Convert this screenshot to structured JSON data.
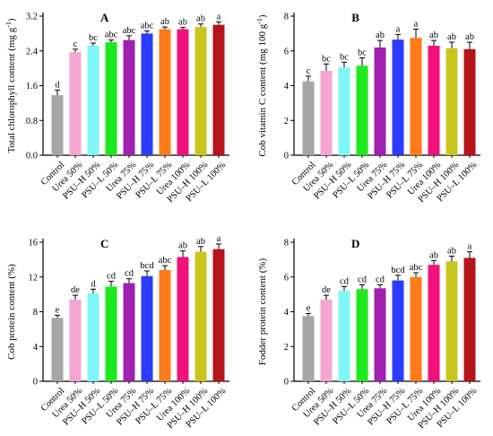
{
  "colors": [
    "#a6a6a6",
    "#f4a6d1",
    "#7ff7f7",
    "#1ee81e",
    "#a020b0",
    "#2b3bff",
    "#ff7a1a",
    "#f0127a",
    "#c8c61e",
    "#b4141a"
  ],
  "chart_data": [
    {
      "type": "bar",
      "panel": "A",
      "ylabel": "Total chlorophyll content (mg g",
      "ylabel_sup": "-1",
      "ylabel_end": ")",
      "ylim": [
        0,
        3.2
      ],
      "yticks": [
        "0.0",
        "0.8",
        "1.6",
        "2.4",
        "3.2"
      ],
      "categories": [
        "Control",
        "Urea 50%",
        "PSU–H 50%",
        "PSU–L 50%",
        "Urea 75%",
        "PSU–H 75%",
        "PSU–L 75%",
        "Urea 100%",
        "PSU–H 100%",
        "PSU–L 100%"
      ],
      "values": [
        1.38,
        2.37,
        2.52,
        2.6,
        2.65,
        2.8,
        2.9,
        2.9,
        2.95,
        3.0
      ],
      "errors": [
        0.12,
        0.07,
        0.06,
        0.05,
        0.1,
        0.06,
        0.05,
        0.04,
        0.07,
        0.07
      ],
      "letters": [
        "d",
        "c",
        "bc",
        "abc",
        "abc",
        "abc",
        "ab",
        "ab",
        "ab",
        "a"
      ]
    },
    {
      "type": "bar",
      "panel": "B",
      "ylabel": "Cob vitamin C content (mg 100 g",
      "ylabel_sup": "-1",
      "ylabel_end": ")",
      "ylim": [
        0,
        8
      ],
      "yticks": [
        "0",
        "2",
        "4",
        "6",
        "8"
      ],
      "categories": [
        "Control",
        "Urea 50%",
        "PSU–H 50%",
        "PSU–L 50%",
        "Urea 75%",
        "PSU–H 75%",
        "PSU–L 75%",
        "Urea 100%",
        "PSU–H 100%",
        "PSU–L 100%"
      ],
      "values": [
        4.25,
        4.85,
        5.05,
        5.15,
        6.2,
        6.65,
        6.75,
        6.3,
        6.15,
        6.1
      ],
      "errors": [
        0.3,
        0.4,
        0.3,
        0.45,
        0.4,
        0.3,
        0.5,
        0.3,
        0.35,
        0.4
      ],
      "letters": [
        "c",
        "bc",
        "bc",
        "bc",
        "ab",
        "a",
        "a",
        "ab",
        "ab",
        "ab"
      ]
    },
    {
      "type": "bar",
      "panel": "C",
      "ylabel": "Cob protein content (%)",
      "ylabel_sup": "",
      "ylabel_end": "",
      "ylim": [
        0,
        16
      ],
      "yticks": [
        "0",
        "4",
        "8",
        "12",
        "16"
      ],
      "categories": [
        "Control",
        "Urea 50%",
        "PSU–H 50%",
        "PSU–L 50%",
        "Urea 75%",
        "PSU–H 75%",
        "PSU–L 75%",
        "Urea 100%",
        "PSU–H 100%",
        "PSU–L 100%"
      ],
      "values": [
        7.3,
        9.4,
        10.1,
        10.9,
        11.3,
        12.1,
        12.8,
        14.3,
        14.9,
        15.2
      ],
      "errors": [
        0.3,
        0.5,
        0.5,
        0.6,
        0.5,
        0.6,
        0.5,
        0.7,
        0.6,
        0.6
      ],
      "letters": [
        "e",
        "de",
        "d",
        "cd",
        "cd",
        "bcd",
        "abc",
        "ab",
        "ab",
        "a"
      ]
    },
    {
      "type": "bar",
      "panel": "D",
      "ylabel": "Fodder protein content (%)",
      "ylabel_sup": "",
      "ylabel_end": "",
      "ylim": [
        0,
        8
      ],
      "yticks": [
        "0",
        "2",
        "4",
        "6",
        "8"
      ],
      "categories": [
        "Control",
        "Urea 50%",
        "PSU–H 50%",
        "PSU–L 50%",
        "Urea 75%",
        "PSU–H 75%",
        "PSU–L 75%",
        "Urea 100%",
        "PSU–H 100%",
        "PSU–L 100%"
      ],
      "values": [
        3.75,
        4.7,
        5.2,
        5.3,
        5.35,
        5.8,
        6.0,
        6.7,
        6.9,
        7.1
      ],
      "errors": [
        0.15,
        0.25,
        0.25,
        0.25,
        0.2,
        0.3,
        0.25,
        0.25,
        0.3,
        0.35
      ],
      "letters": [
        "e",
        "de",
        "cd",
        "cd",
        "cd",
        "bcd",
        "abc",
        "ab",
        "ab",
        "a"
      ]
    }
  ]
}
